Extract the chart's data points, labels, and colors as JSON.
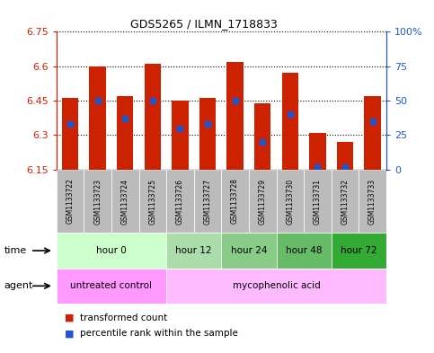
{
  "title": "GDS5265 / ILMN_1718833",
  "samples": [
    "GSM1133722",
    "GSM1133723",
    "GSM1133724",
    "GSM1133725",
    "GSM1133726",
    "GSM1133727",
    "GSM1133728",
    "GSM1133729",
    "GSM1133730",
    "GSM1133731",
    "GSM1133732",
    "GSM1133733"
  ],
  "transformed_counts": [
    6.46,
    6.6,
    6.47,
    6.61,
    6.45,
    6.46,
    6.62,
    6.44,
    6.57,
    6.31,
    6.27,
    6.47
  ],
  "percentile_ranks": [
    33,
    50,
    37,
    50,
    30,
    33,
    50,
    20,
    40,
    2,
    2,
    35
  ],
  "ylim_left": [
    6.15,
    6.75
  ],
  "ylim_right": [
    0,
    100
  ],
  "yticks_left": [
    6.15,
    6.3,
    6.45,
    6.6,
    6.75
  ],
  "yticks_right": [
    0,
    25,
    50,
    75,
    100
  ],
  "bar_color": "#cc2200",
  "blue_color": "#2255cc",
  "baseline": 6.15,
  "time_groups": [
    {
      "label": "hour 0",
      "start": 0,
      "end": 3,
      "bg": "#ccffcc"
    },
    {
      "label": "hour 12",
      "start": 4,
      "end": 5,
      "bg": "#aaddaa"
    },
    {
      "label": "hour 24",
      "start": 6,
      "end": 7,
      "bg": "#88cc88"
    },
    {
      "label": "hour 48",
      "start": 8,
      "end": 9,
      "bg": "#66bb66"
    },
    {
      "label": "hour 72",
      "start": 10,
      "end": 11,
      "bg": "#33aa33"
    }
  ],
  "agent_groups": [
    {
      "label": "untreated control",
      "start": 0,
      "end": 3,
      "bg": "#ff99ff"
    },
    {
      "label": "mycophenolic acid",
      "start": 4,
      "end": 11,
      "bg": "#ffbbff"
    }
  ],
  "sample_bg": "#bbbbbb",
  "grid_color": "#000000",
  "left_axis_color": "#cc2200",
  "right_axis_color": "#2255cc",
  "legend_items": [
    {
      "label": "transformed count",
      "color": "#cc2200"
    },
    {
      "label": "percentile rank within the sample",
      "color": "#2255cc"
    }
  ]
}
